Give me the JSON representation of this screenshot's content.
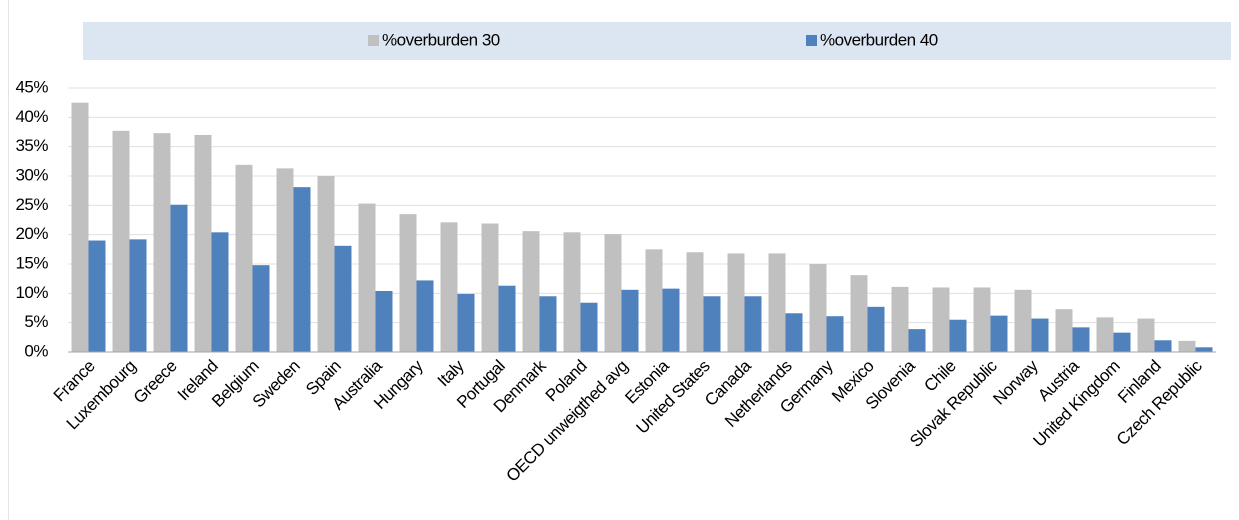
{
  "chart_data": {
    "type": "bar",
    "categories": [
      "France",
      "Luxembourg",
      "Greece",
      "Ireland",
      "Belgium",
      "Sweden",
      "Spain",
      "Australia",
      "Hungary",
      "Italy",
      "Portugal",
      "Denmark",
      "Poland",
      "OECD unweigthed avg",
      "Estonia",
      "United States",
      "Canada",
      "Netherlands",
      "Germany",
      "Mexico",
      "Slovenia",
      "Chile",
      "Slovak Republic",
      "Norway",
      "Austria",
      "United Kingdom",
      "Finland",
      "Czech Republic"
    ],
    "series": [
      {
        "name": "%overburden 30",
        "color": "#c0c0c0",
        "values": [
          42.5,
          37.7,
          37.3,
          37.0,
          31.9,
          31.3,
          30.0,
          25.3,
          23.5,
          22.1,
          21.9,
          20.6,
          20.4,
          20.1,
          17.5,
          17.0,
          16.8,
          16.8,
          15.0,
          13.1,
          11.1,
          11.0,
          11.0,
          10.6,
          7.3,
          5.9,
          5.7,
          1.9
        ]
      },
      {
        "name": "%overburden 40",
        "color": "#4f81bd",
        "values": [
          19.0,
          19.2,
          25.1,
          20.4,
          14.8,
          28.1,
          18.1,
          10.4,
          12.2,
          9.9,
          11.3,
          9.5,
          8.4,
          10.6,
          10.8,
          9.5,
          9.5,
          6.6,
          6.1,
          7.7,
          3.9,
          5.5,
          6.2,
          5.7,
          4.2,
          3.3,
          2.0,
          0.8
        ]
      }
    ],
    "ylim": [
      0,
      45
    ],
    "yticks": [
      {
        "value": 0,
        "label": "0%"
      },
      {
        "value": 5,
        "label": "5%"
      },
      {
        "value": 10,
        "label": "10%"
      },
      {
        "value": 15,
        "label": "15%"
      },
      {
        "value": 20,
        "label": "20%"
      },
      {
        "value": 25,
        "label": "25%"
      },
      {
        "value": 30,
        "label": "30%"
      },
      {
        "value": 35,
        "label": "35%"
      },
      {
        "value": 40,
        "label": "40%"
      },
      {
        "value": 45,
        "label": "45%"
      }
    ],
    "grid": true,
    "legend": "top"
  }
}
